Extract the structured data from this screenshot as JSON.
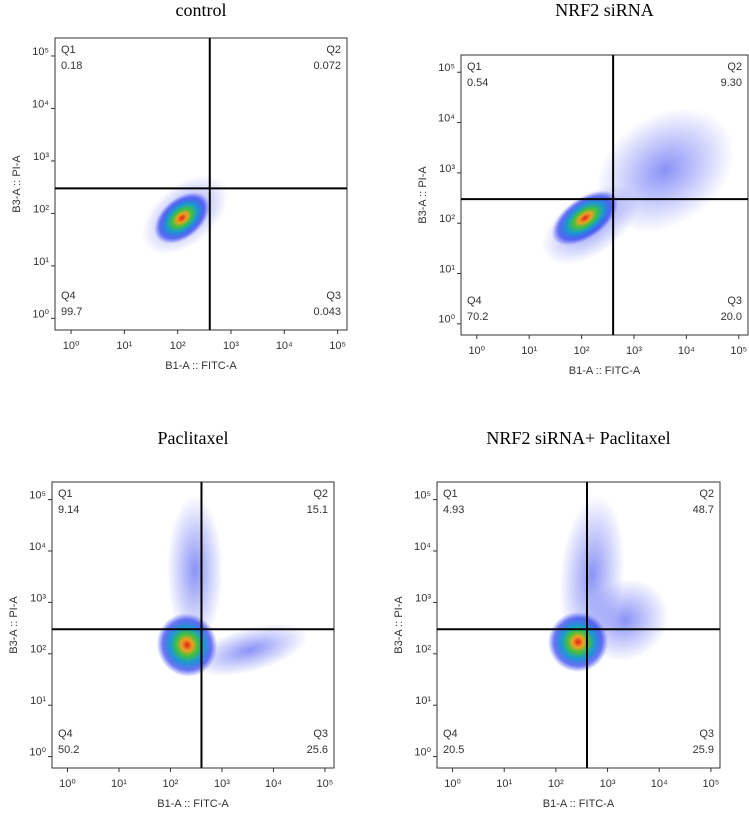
{
  "chart_data": [
    {
      "type": "scatter",
      "title": "control",
      "x_label": "B1-A :: FITC-A",
      "y_label": "B3-A :: PI-A",
      "log_x": true,
      "log_y": true,
      "xlim": [
        0.5,
        150000
      ],
      "ylim": [
        0.6,
        220000
      ],
      "xticks": [
        {
          "value": 1,
          "label": "10⁰"
        },
        {
          "value": 10,
          "label": "10¹"
        },
        {
          "value": 100,
          "label": "10²"
        },
        {
          "value": 1000,
          "label": "10³"
        },
        {
          "value": 10000,
          "label": "10⁴"
        },
        {
          "value": 100000,
          "label": "10⁵"
        }
      ],
      "yticks": [
        {
          "value": 1,
          "label": "10⁰"
        },
        {
          "value": 10,
          "label": "10¹"
        },
        {
          "value": 100,
          "label": "10²"
        },
        {
          "value": 1000,
          "label": "10³"
        },
        {
          "value": 10000,
          "label": "10⁴"
        },
        {
          "value": 100000,
          "label": "10⁵"
        }
      ],
      "gate": {
        "x": 400,
        "y": 300
      },
      "quadrants": {
        "names": [
          "Q1",
          "Q2",
          "Q3",
          "Q4"
        ],
        "values": [
          0.18,
          0.072,
          0.043,
          99.7
        ],
        "value_labels": [
          "0.18",
          "0.072",
          "0.043",
          "99.7"
        ]
      }
    },
    {
      "type": "scatter",
      "title": "NRF2 siRNA",
      "x_label": "B1-A :: FITC-A",
      "y_label": "B3-A :: PI-A",
      "log_x": true,
      "log_y": true,
      "xlim": [
        0.5,
        150000
      ],
      "ylim": [
        0.6,
        220000
      ],
      "xticks": [
        {
          "value": 1,
          "label": "10⁰"
        },
        {
          "value": 10,
          "label": "10¹"
        },
        {
          "value": 100,
          "label": "10²"
        },
        {
          "value": 1000,
          "label": "10³"
        },
        {
          "value": 10000,
          "label": "10⁴"
        },
        {
          "value": 100000,
          "label": "10⁵"
        }
      ],
      "yticks": [
        {
          "value": 1,
          "label": "10⁰"
        },
        {
          "value": 10,
          "label": "10¹"
        },
        {
          "value": 100,
          "label": "10²"
        },
        {
          "value": 1000,
          "label": "10³"
        },
        {
          "value": 10000,
          "label": "10⁴"
        },
        {
          "value": 100000,
          "label": "10⁵"
        }
      ],
      "gate": {
        "x": 400,
        "y": 300
      },
      "quadrants": {
        "names": [
          "Q1",
          "Q2",
          "Q3",
          "Q4"
        ],
        "values": [
          0.54,
          9.3,
          20,
          70.2
        ],
        "value_labels": [
          "0.54",
          "9.30",
          "20.0",
          "70.2"
        ]
      }
    },
    {
      "type": "scatter",
      "title": "Paclitaxel",
      "x_label": "B1-A :: FITC-A",
      "y_label": "B3-A :: PI-A",
      "log_x": true,
      "log_y": true,
      "xlim": [
        0.5,
        150000
      ],
      "ylim": [
        0.6,
        220000
      ],
      "xticks": [
        {
          "value": 1,
          "label": "10⁰"
        },
        {
          "value": 10,
          "label": "10¹"
        },
        {
          "value": 100,
          "label": "10²"
        },
        {
          "value": 1000,
          "label": "10³"
        },
        {
          "value": 10000,
          "label": "10⁴"
        },
        {
          "value": 100000,
          "label": "10⁵"
        }
      ],
      "yticks": [
        {
          "value": 1,
          "label": "10⁰"
        },
        {
          "value": 10,
          "label": "10¹"
        },
        {
          "value": 100,
          "label": "10²"
        },
        {
          "value": 1000,
          "label": "10³"
        },
        {
          "value": 10000,
          "label": "10⁴"
        },
        {
          "value": 100000,
          "label": "10⁵"
        }
      ],
      "gate": {
        "x": 400,
        "y": 300
      },
      "quadrants": {
        "names": [
          "Q1",
          "Q2",
          "Q3",
          "Q4"
        ],
        "values": [
          9.14,
          15.1,
          25.6,
          50.2
        ],
        "value_labels": [
          "9.14",
          "15.1",
          "25.6",
          "50.2"
        ]
      }
    },
    {
      "type": "scatter",
      "title": "NRF2 siRNA+ Paclitaxel",
      "x_label": "B1-A :: FITC-A",
      "y_label": "B3-A :: PI-A",
      "log_x": true,
      "log_y": true,
      "xlim": [
        0.5,
        150000
      ],
      "ylim": [
        0.6,
        220000
      ],
      "xticks": [
        {
          "value": 1,
          "label": "10⁰"
        },
        {
          "value": 10,
          "label": "10¹"
        },
        {
          "value": 100,
          "label": "10²"
        },
        {
          "value": 1000,
          "label": "10³"
        },
        {
          "value": 10000,
          "label": "10⁴"
        },
        {
          "value": 100000,
          "label": "10⁵"
        }
      ],
      "yticks": [
        {
          "value": 1,
          "label": "10⁰"
        },
        {
          "value": 10,
          "label": "10¹"
        },
        {
          "value": 100,
          "label": "10²"
        },
        {
          "value": 1000,
          "label": "10³"
        },
        {
          "value": 10000,
          "label": "10⁴"
        },
        {
          "value": 100000,
          "label": "10⁵"
        }
      ],
      "gate": {
        "x": 400,
        "y": 300
      },
      "quadrants": {
        "names": [
          "Q1",
          "Q2",
          "Q3",
          "Q4"
        ],
        "values": [
          4.93,
          48.7,
          25.9,
          20.5
        ],
        "value_labels": [
          "4.93",
          "48.7",
          "25.9",
          "20.5"
        ]
      }
    }
  ]
}
